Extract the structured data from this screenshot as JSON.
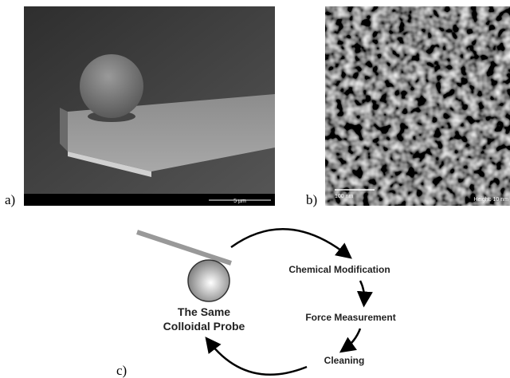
{
  "panels": {
    "a": {
      "label": "a)",
      "scale_bar": "5 µm"
    },
    "b": {
      "label": "b)",
      "scale_bar": "100 nm",
      "height_note": "Height: 10 nm"
    },
    "c": {
      "label": "c)"
    }
  },
  "diagram": {
    "probe_lines": [
      "The Same",
      "Colloidal Probe"
    ],
    "steps": [
      "Chemical Modification",
      "Force Measurement",
      "Cleaning"
    ]
  }
}
